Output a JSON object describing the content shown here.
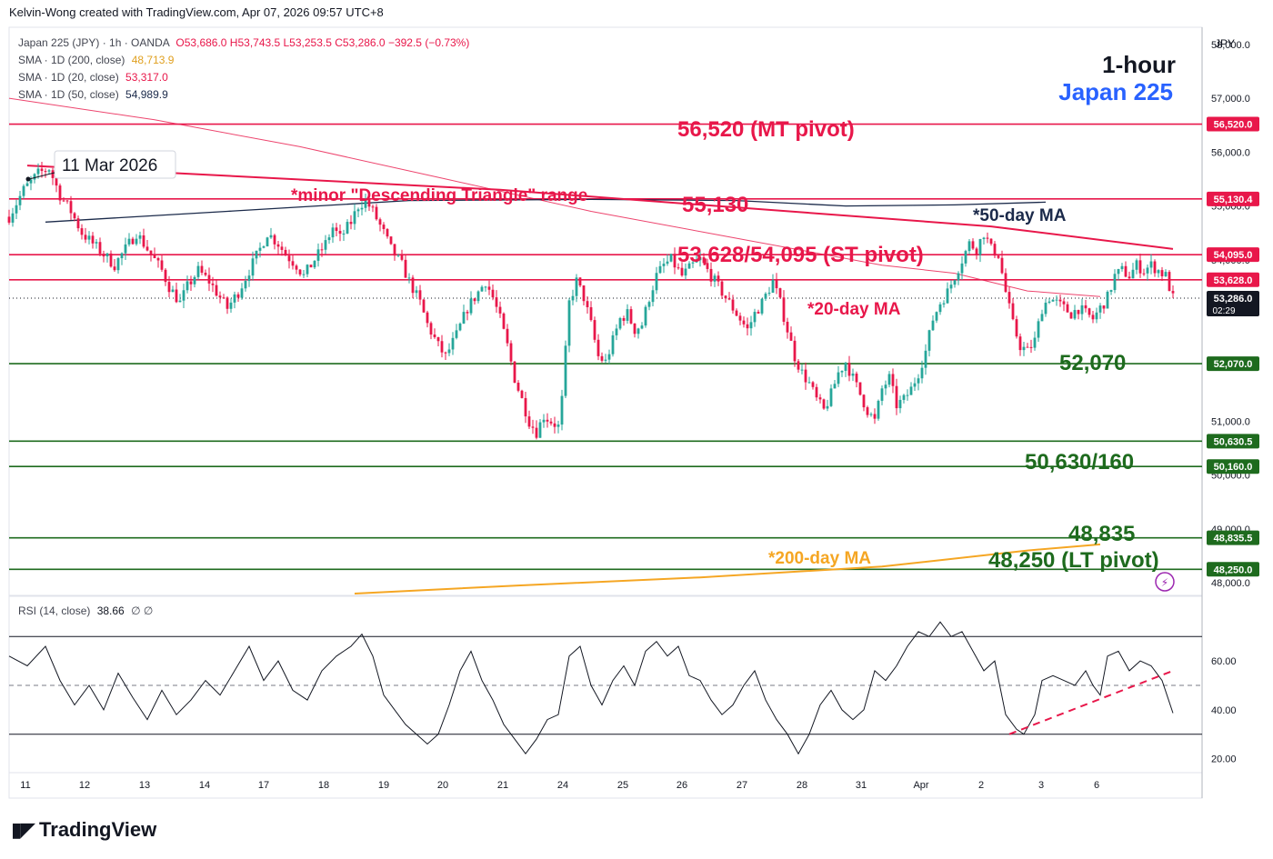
{
  "header": {
    "attribution": "Kelvin-Wong created with TradingView.com, Apr 07, 2026 09:57 UTC+8"
  },
  "legend": {
    "symbol": "Japan 225 (JPY) · 1h · OANDA",
    "ohlc": "O53,686.0  H53,743.5  L53,253.5  C53,286.0  −392.5 (−0.73%)",
    "sma200_label": "SMA · 1D (200, close)",
    "sma200_value": "48,713.9",
    "sma20_label": "SMA · 1D (20, close)",
    "sma20_value": "53,317.0",
    "sma50_label": "SMA · 1D (50, close)",
    "sma50_value": "54,989.9",
    "rsi_label": "RSI (14, close)",
    "rsi_value": "38.66",
    "rsi_extra": "∅ ∅"
  },
  "title": {
    "timeframe": "1-hour",
    "instrument": "Japan 225"
  },
  "currency": "JPY",
  "logo": {
    "text": "TradingView"
  },
  "colors": {
    "red_line": "#e8174a",
    "green_line": "#1e6b1e",
    "up": "#26a69a",
    "down": "#e8174a",
    "sma50": "#1b2a4a",
    "sma200": "#f5a623",
    "accent_blue": "#2962ff"
  },
  "chart_data": {
    "type": "candlestick",
    "price_ylim": [
      47850,
      58150
    ],
    "rsi_ylim": [
      15,
      85
    ],
    "price_ticks": [
      "58,000.0",
      "57,000.0",
      "56,000.0",
      "55,000.0",
      "54,000.0",
      "51,000.0",
      "50,000.0",
      "49,000.0",
      "48,000.0"
    ],
    "price_tick_values": [
      58000,
      57000,
      56000,
      55000,
      54000,
      51000,
      50000,
      49000,
      48000
    ],
    "rsi_ticks": [
      "60.00",
      "40.00",
      "20.00"
    ],
    "rsi_tick_values": [
      60,
      40,
      20
    ],
    "x_labels": [
      "11",
      "12",
      "13",
      "14",
      "17",
      "18",
      "19",
      "20",
      "21",
      "24",
      "25",
      "26",
      "27",
      "28",
      "31",
      "Apr",
      "2",
      "3",
      "6"
    ],
    "levels": [
      {
        "price": 56520,
        "label": "56,520 (MT pivot)",
        "badge": "56,520.0",
        "color": "red"
      },
      {
        "price": 55130,
        "label": "55,130",
        "badge": "55,130.4",
        "color": "red"
      },
      {
        "price": 54095,
        "label": "53,628/54,095 (ST pivot)",
        "badge": "54,095.0",
        "color": "red"
      },
      {
        "price": 53628,
        "label": "",
        "badge": "53,628.0",
        "color": "red"
      },
      {
        "price": 52070,
        "label": "52,070",
        "badge": "52,070.0",
        "color": "green"
      },
      {
        "price": 50630,
        "label": "50,630/160",
        "badge": "50,630.5",
        "color": "green"
      },
      {
        "price": 50160,
        "label": "",
        "badge": "50,160.0",
        "color": "green"
      },
      {
        "price": 48835,
        "label": "48,835",
        "badge": "48,835.5",
        "color": "green"
      },
      {
        "price": 48250,
        "label": "48,250 (LT pivot)",
        "badge": "48,250.0",
        "color": "green"
      }
    ],
    "last_price": {
      "badge": "53,286.0",
      "countdown": "02:29"
    },
    "annotations": {
      "date_callout": "11 Mar 2026",
      "triangle": "*minor \"Descending Triangle\" range",
      "ma50": "*50-day MA",
      "ma20": "*20-day MA",
      "ma200": "*200-day MA"
    },
    "close_path": [
      [
        0,
        54800
      ],
      [
        4,
        55300
      ],
      [
        8,
        55600
      ],
      [
        11,
        55700
      ],
      [
        14,
        55200
      ],
      [
        17,
        54900
      ],
      [
        20,
        54500
      ],
      [
        23,
        54300
      ],
      [
        26,
        54100
      ],
      [
        29,
        53900
      ],
      [
        32,
        54200
      ],
      [
        35,
        54500
      ],
      [
        37,
        54300
      ],
      [
        40,
        54000
      ],
      [
        42,
        53800
      ],
      [
        44,
        53500
      ],
      [
        47,
        53200
      ],
      [
        49,
        53500
      ],
      [
        52,
        53800
      ],
      [
        55,
        53600
      ],
      [
        58,
        53300
      ],
      [
        60,
        53100
      ],
      [
        63,
        53400
      ],
      [
        66,
        53800
      ],
      [
        69,
        54200
      ],
      [
        71,
        54500
      ],
      [
        74,
        54300
      ],
      [
        76,
        54100
      ],
      [
        79,
        53900
      ],
      [
        81,
        53700
      ],
      [
        84,
        54000
      ],
      [
        87,
        54300
      ],
      [
        89,
        54600
      ],
      [
        91,
        54400
      ],
      [
        94,
        54700
      ],
      [
        96,
        55000
      ],
      [
        98,
        55100
      ],
      [
        100,
        54900
      ],
      [
        103,
        54500
      ],
      [
        105,
        54200
      ],
      [
        108,
        53900
      ],
      [
        110,
        53600
      ],
      [
        113,
        53200
      ],
      [
        115,
        52800
      ],
      [
        118,
        52400
      ],
      [
        120,
        52200
      ],
      [
        123,
        52600
      ],
      [
        126,
        53100
      ],
      [
        129,
        53400
      ],
      [
        131,
        53600
      ],
      [
        133,
        53300
      ],
      [
        135,
        52900
      ],
      [
        137,
        52400
      ],
      [
        139,
        51800
      ],
      [
        141,
        51400
      ],
      [
        143,
        51000
      ],
      [
        145,
        50800
      ],
      [
        147,
        51100
      ],
      [
        149,
        51000
      ],
      [
        151,
        50900
      ],
      [
        152,
        51400
      ],
      [
        154,
        53200
      ],
      [
        156,
        53600
      ],
      [
        158,
        53300
      ],
      [
        160,
        52800
      ],
      [
        162,
        52200
      ],
      [
        164,
        52100
      ],
      [
        166,
        52500
      ],
      [
        168,
        52900
      ],
      [
        170,
        53000
      ],
      [
        172,
        52700
      ],
      [
        174,
        52800
      ],
      [
        176,
        53300
      ],
      [
        178,
        53700
      ],
      [
        180,
        53900
      ],
      [
        182,
        54000
      ],
      [
        185,
        53700
      ],
      [
        188,
        53900
      ],
      [
        190,
        54000
      ],
      [
        192,
        53800
      ],
      [
        195,
        53500
      ],
      [
        197,
        53300
      ],
      [
        199,
        53100
      ],
      [
        201,
        52900
      ],
      [
        203,
        52700
      ],
      [
        205,
        53000
      ],
      [
        207,
        53200
      ],
      [
        210,
        53600
      ],
      [
        212,
        53200
      ],
      [
        214,
        52700
      ],
      [
        216,
        52200
      ],
      [
        218,
        51900
      ],
      [
        220,
        51700
      ],
      [
        222,
        51400
      ],
      [
        224,
        51200
      ],
      [
        226,
        51500
      ],
      [
        228,
        51900
      ],
      [
        230,
        52100
      ],
      [
        232,
        51800
      ],
      [
        234,
        51500
      ],
      [
        236,
        51200
      ],
      [
        238,
        51000
      ],
      [
        240,
        51600
      ],
      [
        242,
        51800
      ],
      [
        244,
        51300
      ],
      [
        246,
        51400
      ],
      [
        248,
        51600
      ],
      [
        250,
        51900
      ],
      [
        252,
        52300
      ],
      [
        254,
        52900
      ],
      [
        256,
        53200
      ],
      [
        258,
        53400
      ],
      [
        260,
        53700
      ],
      [
        262,
        54000
      ],
      [
        264,
        54300
      ],
      [
        266,
        54200
      ],
      [
        268,
        54500
      ],
      [
        270,
        54200
      ],
      [
        272,
        54100
      ],
      [
        274,
        53400
      ],
      [
        276,
        52800
      ],
      [
        278,
        52400
      ],
      [
        280,
        52300
      ],
      [
        282,
        52500
      ],
      [
        284,
        53100
      ],
      [
        286,
        53300
      ],
      [
        288,
        53200
      ],
      [
        290,
        53100
      ],
      [
        292,
        53000
      ],
      [
        294,
        53100
      ],
      [
        296,
        53000
      ],
      [
        298,
        52900
      ],
      [
        300,
        53100
      ],
      [
        302,
        53300
      ],
      [
        304,
        53700
      ],
      [
        306,
        53800
      ],
      [
        308,
        53700
      ],
      [
        310,
        53900
      ],
      [
        312,
        53800
      ],
      [
        314,
        53900
      ],
      [
        316,
        53800
      ],
      [
        318,
        53700
      ],
      [
        320,
        53286
      ]
    ],
    "rsi_path": [
      [
        0,
        62
      ],
      [
        5,
        58
      ],
      [
        10,
        66
      ],
      [
        14,
        52
      ],
      [
        18,
        42
      ],
      [
        22,
        50
      ],
      [
        26,
        40
      ],
      [
        30,
        55
      ],
      [
        34,
        45
      ],
      [
        38,
        36
      ],
      [
        42,
        48
      ],
      [
        46,
        38
      ],
      [
        50,
        44
      ],
      [
        54,
        52
      ],
      [
        58,
        46
      ],
      [
        62,
        56
      ],
      [
        66,
        66
      ],
      [
        70,
        52
      ],
      [
        74,
        60
      ],
      [
        78,
        48
      ],
      [
        82,
        44
      ],
      [
        86,
        56
      ],
      [
        90,
        62
      ],
      [
        94,
        66
      ],
      [
        97,
        71
      ],
      [
        100,
        62
      ],
      [
        103,
        46
      ],
      [
        106,
        40
      ],
      [
        109,
        34
      ],
      [
        112,
        30
      ],
      [
        115,
        26
      ],
      [
        118,
        30
      ],
      [
        121,
        42
      ],
      [
        124,
        56
      ],
      [
        127,
        64
      ],
      [
        130,
        52
      ],
      [
        133,
        44
      ],
      [
        136,
        34
      ],
      [
        139,
        28
      ],
      [
        142,
        22
      ],
      [
        145,
        28
      ],
      [
        148,
        36
      ],
      [
        151,
        38
      ],
      [
        154,
        62
      ],
      [
        157,
        66
      ],
      [
        160,
        50
      ],
      [
        163,
        42
      ],
      [
        166,
        52
      ],
      [
        169,
        58
      ],
      [
        172,
        50
      ],
      [
        175,
        64
      ],
      [
        178,
        68
      ],
      [
        181,
        62
      ],
      [
        184,
        66
      ],
      [
        187,
        54
      ],
      [
        190,
        52
      ],
      [
        193,
        44
      ],
      [
        196,
        38
      ],
      [
        199,
        42
      ],
      [
        202,
        50
      ],
      [
        205,
        56
      ],
      [
        208,
        44
      ],
      [
        211,
        36
      ],
      [
        214,
        30
      ],
      [
        217,
        22
      ],
      [
        220,
        30
      ],
      [
        223,
        42
      ],
      [
        226,
        48
      ],
      [
        229,
        40
      ],
      [
        232,
        36
      ],
      [
        235,
        40
      ],
      [
        238,
        56
      ],
      [
        241,
        52
      ],
      [
        244,
        58
      ],
      [
        247,
        66
      ],
      [
        250,
        72
      ],
      [
        253,
        70
      ],
      [
        256,
        76
      ],
      [
        259,
        70
      ],
      [
        262,
        72
      ],
      [
        265,
        64
      ],
      [
        268,
        56
      ],
      [
        271,
        60
      ],
      [
        274,
        38
      ],
      [
        277,
        32
      ],
      [
        279,
        30
      ],
      [
        282,
        38
      ],
      [
        284,
        52
      ],
      [
        287,
        54
      ],
      [
        290,
        52
      ],
      [
        293,
        50
      ],
      [
        296,
        56
      ],
      [
        298,
        50
      ],
      [
        300,
        46
      ],
      [
        302,
        62
      ],
      [
        305,
        64
      ],
      [
        308,
        56
      ],
      [
        311,
        60
      ],
      [
        314,
        58
      ],
      [
        317,
        52
      ],
      [
        320,
        38.66
      ]
    ],
    "sma50_path": [
      [
        10,
        54700
      ],
      [
        60,
        54900
      ],
      [
        110,
        55100
      ],
      [
        160,
        55120
      ],
      [
        200,
        55100
      ],
      [
        230,
        55000
      ],
      [
        260,
        55020
      ],
      [
        285,
        55070
      ]
    ],
    "sma20_path": [
      [
        0,
        57000
      ],
      [
        40,
        56600
      ],
      [
        80,
        56100
      ],
      [
        120,
        55500
      ],
      [
        160,
        54900
      ],
      [
        200,
        54400
      ],
      [
        240,
        53900
      ],
      [
        260,
        53750
      ],
      [
        280,
        53420
      ],
      [
        300,
        53317
      ]
    ],
    "sma200_path": [
      [
        95,
        47800
      ],
      [
        140,
        47950
      ],
      [
        190,
        48100
      ],
      [
        240,
        48300
      ],
      [
        280,
        48600
      ],
      [
        300,
        48713
      ]
    ],
    "triangle_path": [
      [
        5,
        55750
      ],
      [
        135,
        55300
      ],
      [
        270,
        54620
      ],
      [
        320,
        54200
      ]
    ],
    "rsi_trend": [
      [
        275,
        30
      ],
      [
        320,
        56
      ]
    ]
  }
}
